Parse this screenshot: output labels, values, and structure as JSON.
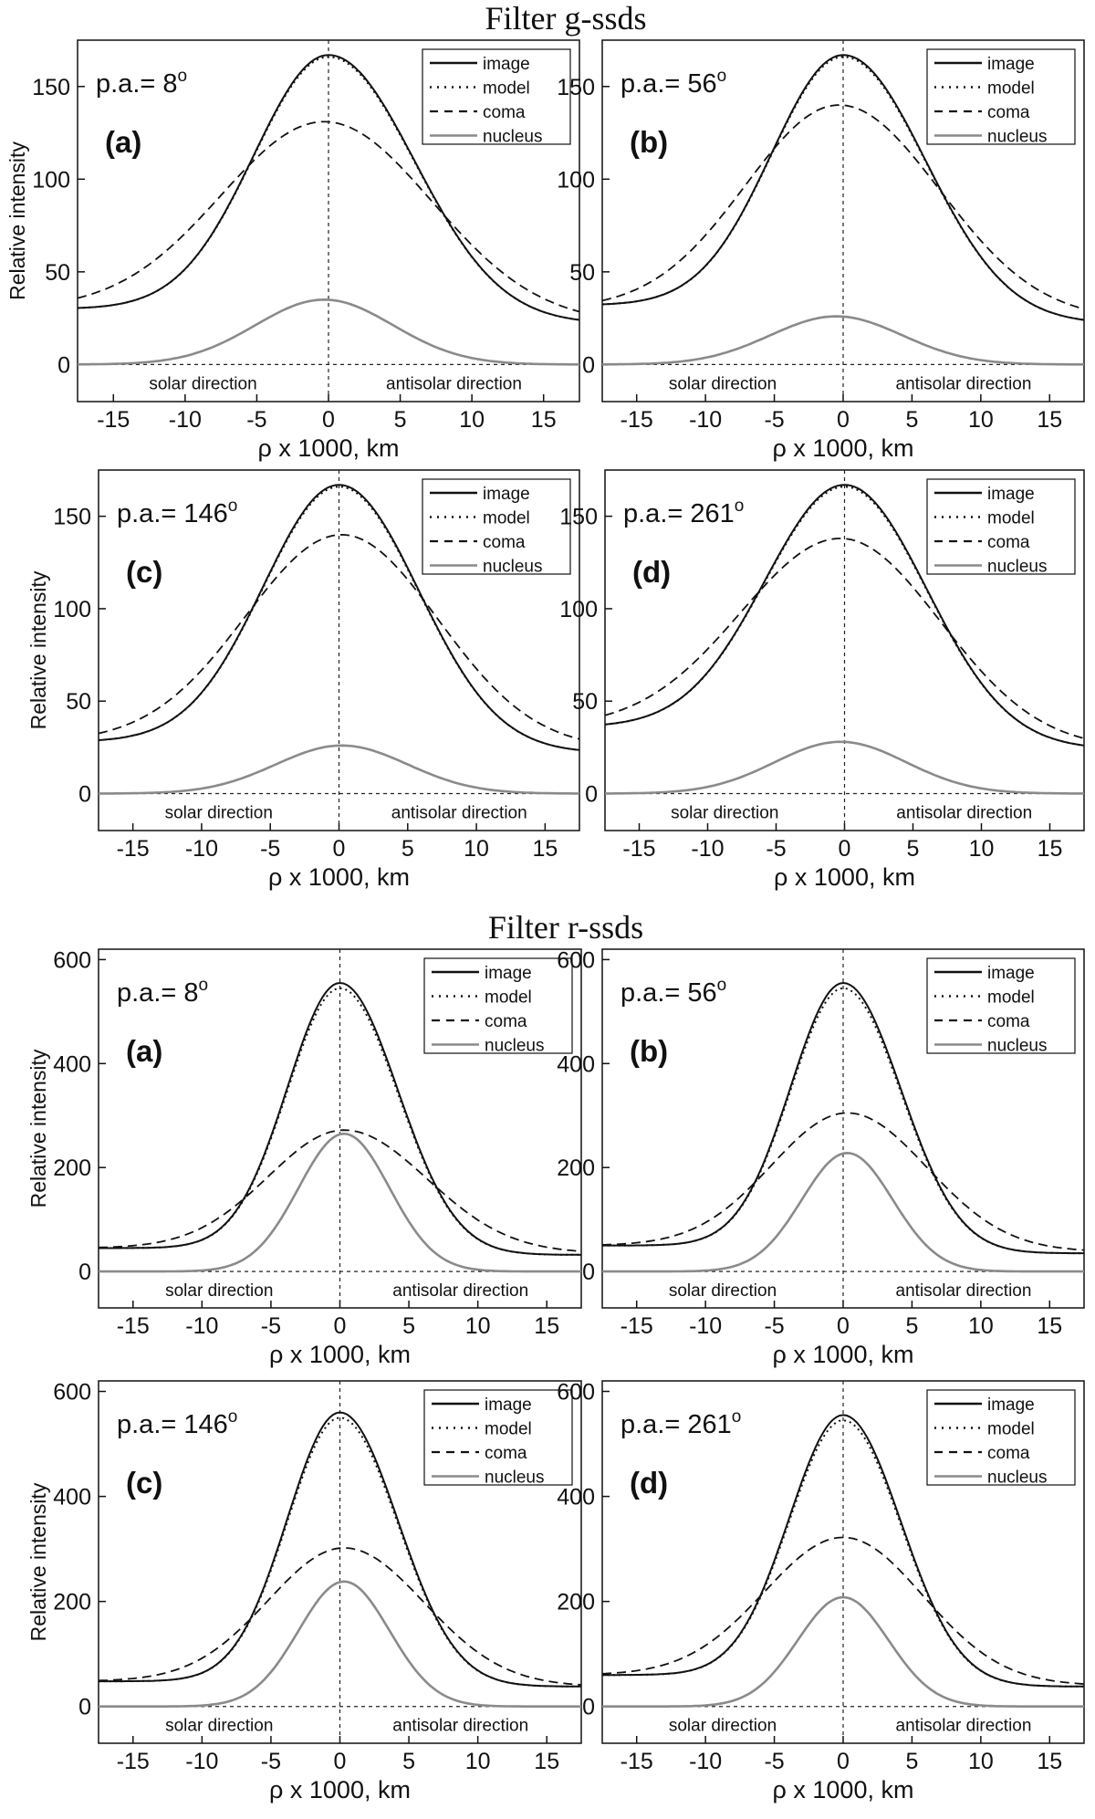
{
  "section_titles": [
    "Filter g-ssds",
    "Filter r-ssds"
  ],
  "chart_data": [
    {
      "type": "line",
      "title": "Filter g-ssds",
      "panel": "(a)",
      "pa": "p.a.= 8",
      "pa_sup": "o",
      "xlabel": "ρ x 1000, km",
      "ylabel": "Relative intensity",
      "xlim": [
        -17.5,
        17.5
      ],
      "ylim": [
        -20,
        175
      ],
      "x_ticks": [
        -15,
        -10,
        -5,
        0,
        5,
        10,
        15
      ],
      "y_ticks": [
        0,
        50,
        100,
        150
      ],
      "show_ylabel": true,
      "left_text": "solar direction",
      "right_text": "antisolar direction",
      "legend": [
        "image",
        "model",
        "coma",
        "nucleus"
      ],
      "legend_position": "top-right",
      "series": {
        "image": {
          "peak": 167,
          "xc": 0,
          "wl": 5.2,
          "wr": 6.0,
          "bl": 30,
          "br": 22
        },
        "coma": {
          "peak": 131,
          "xc": -0.3,
          "wl": 7.2,
          "wr": 7.5,
          "bl": 30,
          "br": 22
        },
        "nucleus": {
          "peak": 35,
          "xc": -0.3,
          "wl": 4.8,
          "wr": 4.8,
          "bl": 0,
          "br": 0
        }
      }
    },
    {
      "type": "line",
      "title": "Filter g-ssds",
      "panel": "(b)",
      "pa": "p.a.= 56",
      "pa_sup": "o",
      "xlabel": "ρ x 1000, km",
      "ylabel": "",
      "xlim": [
        -17.5,
        17.5
      ],
      "ylim": [
        -20,
        175
      ],
      "x_ticks": [
        -15,
        -10,
        -5,
        0,
        5,
        10,
        15
      ],
      "y_ticks": [
        0,
        50,
        100,
        150
      ],
      "show_ylabel": false,
      "left_text": "solar direction",
      "right_text": "antisolar direction",
      "legend": [
        "image",
        "model",
        "coma",
        "nucleus"
      ],
      "legend_position": "top-right",
      "series": {
        "image": {
          "peak": 167,
          "xc": 0,
          "wl": 5.2,
          "wr": 6.0,
          "bl": 32,
          "br": 22
        },
        "coma": {
          "peak": 140,
          "xc": -0.3,
          "wl": 6.8,
          "wr": 7.3,
          "bl": 30,
          "br": 24
        },
        "nucleus": {
          "peak": 26,
          "xc": -0.5,
          "wl": 4.8,
          "wr": 4.8,
          "bl": 0,
          "br": 0
        }
      }
    },
    {
      "type": "line",
      "title": "Filter g-ssds",
      "panel": "(c)",
      "pa": "p.a.= 146",
      "pa_sup": "o",
      "xlabel": "ρ x 1000, km",
      "ylabel": "Relative intensity",
      "xlim": [
        -17.5,
        17.5
      ],
      "ylim": [
        -20,
        175
      ],
      "x_ticks": [
        -15,
        -10,
        -5,
        0,
        5,
        10,
        15
      ],
      "y_ticks": [
        0,
        50,
        100,
        150
      ],
      "show_ylabel": true,
      "left_text": "solar direction",
      "right_text": "antisolar direction",
      "legend": [
        "image",
        "model",
        "coma",
        "nucleus"
      ],
      "legend_position": "top-right",
      "series": {
        "image": {
          "peak": 167,
          "xc": 0,
          "wl": 5.5,
          "wr": 5.8,
          "bl": 28,
          "br": 22
        },
        "coma": {
          "peak": 140,
          "xc": 0.2,
          "wl": 7.0,
          "wr": 7.0,
          "bl": 28,
          "br": 24
        },
        "nucleus": {
          "peak": 26,
          "xc": 0.2,
          "wl": 4.8,
          "wr": 4.8,
          "bl": 0,
          "br": 0
        }
      }
    },
    {
      "type": "line",
      "title": "Filter g-ssds",
      "panel": "(d)",
      "pa": "p.a.= 261",
      "pa_sup": "o",
      "xlabel": "ρ x 1000, km",
      "ylabel": "",
      "xlim": [
        -17.5,
        17.5
      ],
      "ylim": [
        -20,
        175
      ],
      "x_ticks": [
        -15,
        -10,
        -5,
        0,
        5,
        10,
        15
      ],
      "y_ticks": [
        0,
        50,
        100,
        150
      ],
      "show_ylabel": false,
      "left_text": "solar direction",
      "right_text": "antisolar direction",
      "legend": [
        "image",
        "model",
        "coma",
        "nucleus"
      ],
      "legend_position": "top-right",
      "series": {
        "image": {
          "peak": 167,
          "xc": 0,
          "wl": 5.8,
          "wr": 6.0,
          "bl": 36,
          "br": 24
        },
        "coma": {
          "peak": 138,
          "xc": -0.3,
          "wl": 7.3,
          "wr": 7.3,
          "bl": 36,
          "br": 24
        },
        "nucleus": {
          "peak": 28,
          "xc": -0.3,
          "wl": 4.8,
          "wr": 4.8,
          "bl": 0,
          "br": 0
        }
      }
    },
    {
      "type": "line",
      "title": "Filter r-ssds",
      "panel": "(a)",
      "pa": "p.a.= 8",
      "pa_sup": "o",
      "xlabel": "ρ x 1000, km",
      "ylabel": "Relative intensity",
      "xlim": [
        -17.5,
        17.5
      ],
      "ylim": [
        -70,
        620
      ],
      "x_ticks": [
        -15,
        -10,
        -5,
        0,
        5,
        10,
        15
      ],
      "y_ticks": [
        0,
        200,
        400,
        600
      ],
      "show_ylabel": true,
      "left_text": "solar direction",
      "right_text": "antisolar direction",
      "legend": [
        "image",
        "model",
        "coma",
        "nucleus"
      ],
      "legend_position": "top-right",
      "series": {
        "image": {
          "peak": 555,
          "xc": 0,
          "wl": 3.8,
          "wr": 4.2,
          "bl": 45,
          "br": 32
        },
        "coma": {
          "peak": 272,
          "xc": 0.3,
          "wl": 5.5,
          "wr": 6.0,
          "bl": 45,
          "br": 35
        },
        "nucleus": {
          "peak": 265,
          "xc": 0.3,
          "wl": 3.3,
          "wr": 3.3,
          "bl": 0,
          "br": 0
        }
      }
    },
    {
      "type": "line",
      "title": "Filter r-ssds",
      "panel": "(b)",
      "pa": "p.a.= 56",
      "pa_sup": "o",
      "xlabel": "ρ x 1000, km",
      "ylabel": "",
      "xlim": [
        -17.5,
        17.5
      ],
      "ylim": [
        -70,
        620
      ],
      "x_ticks": [
        -15,
        -10,
        -5,
        0,
        5,
        10,
        15
      ],
      "y_ticks": [
        0,
        200,
        400,
        600
      ],
      "show_ylabel": false,
      "left_text": "solar direction",
      "right_text": "antisolar direction",
      "legend": [
        "image",
        "model",
        "coma",
        "nucleus"
      ],
      "legend_position": "top-right",
      "series": {
        "image": {
          "peak": 555,
          "xc": 0,
          "wl": 3.8,
          "wr": 4.2,
          "bl": 50,
          "br": 35
        },
        "coma": {
          "peak": 305,
          "xc": 0.3,
          "wl": 5.5,
          "wr": 5.8,
          "bl": 50,
          "br": 38
        },
        "nucleus": {
          "peak": 228,
          "xc": 0.3,
          "wl": 3.3,
          "wr": 3.3,
          "bl": 0,
          "br": 0
        }
      }
    },
    {
      "type": "line",
      "title": "Filter r-ssds",
      "panel": "(c)",
      "pa": "p.a.= 146",
      "pa_sup": "o",
      "xlabel": "ρ x 1000, km",
      "ylabel": "Relative intensity",
      "xlim": [
        -17.5,
        17.5
      ],
      "ylim": [
        -70,
        620
      ],
      "x_ticks": [
        -15,
        -10,
        -5,
        0,
        5,
        10,
        15
      ],
      "y_ticks": [
        0,
        200,
        400,
        600
      ],
      "show_ylabel": true,
      "left_text": "solar direction",
      "right_text": "antisolar direction",
      "legend": [
        "image",
        "model",
        "coma",
        "nucleus"
      ],
      "legend_position": "top-right",
      "series": {
        "image": {
          "peak": 560,
          "xc": 0,
          "wl": 3.8,
          "wr": 4.2,
          "bl": 48,
          "br": 38
        },
        "coma": {
          "peak": 302,
          "xc": 0.3,
          "wl": 5.5,
          "wr": 5.8,
          "bl": 48,
          "br": 38
        },
        "nucleus": {
          "peak": 238,
          "xc": 0.3,
          "wl": 3.3,
          "wr": 3.3,
          "bl": 0,
          "br": 0
        }
      }
    },
    {
      "type": "line",
      "title": "Filter r-ssds",
      "panel": "(d)",
      "pa": "p.a.= 261",
      "pa_sup": "o",
      "xlabel": "ρ x 1000, km",
      "ylabel": "",
      "xlim": [
        -17.5,
        17.5
      ],
      "ylim": [
        -70,
        620
      ],
      "x_ticks": [
        -15,
        -10,
        -5,
        0,
        5,
        10,
        15
      ],
      "y_ticks": [
        0,
        200,
        400,
        600
      ],
      "show_ylabel": false,
      "left_text": "solar direction",
      "right_text": "antisolar direction",
      "legend": [
        "image",
        "model",
        "coma",
        "nucleus"
      ],
      "legend_position": "top-right",
      "series": {
        "image": {
          "peak": 555,
          "xc": 0,
          "wl": 3.9,
          "wr": 4.2,
          "bl": 60,
          "br": 38
        },
        "coma": {
          "peak": 322,
          "xc": 0,
          "wl": 5.7,
          "wr": 5.8,
          "bl": 60,
          "br": 40
        },
        "nucleus": {
          "peak": 208,
          "xc": 0,
          "wl": 3.3,
          "wr": 3.3,
          "bl": 0,
          "br": 0
        }
      }
    }
  ]
}
